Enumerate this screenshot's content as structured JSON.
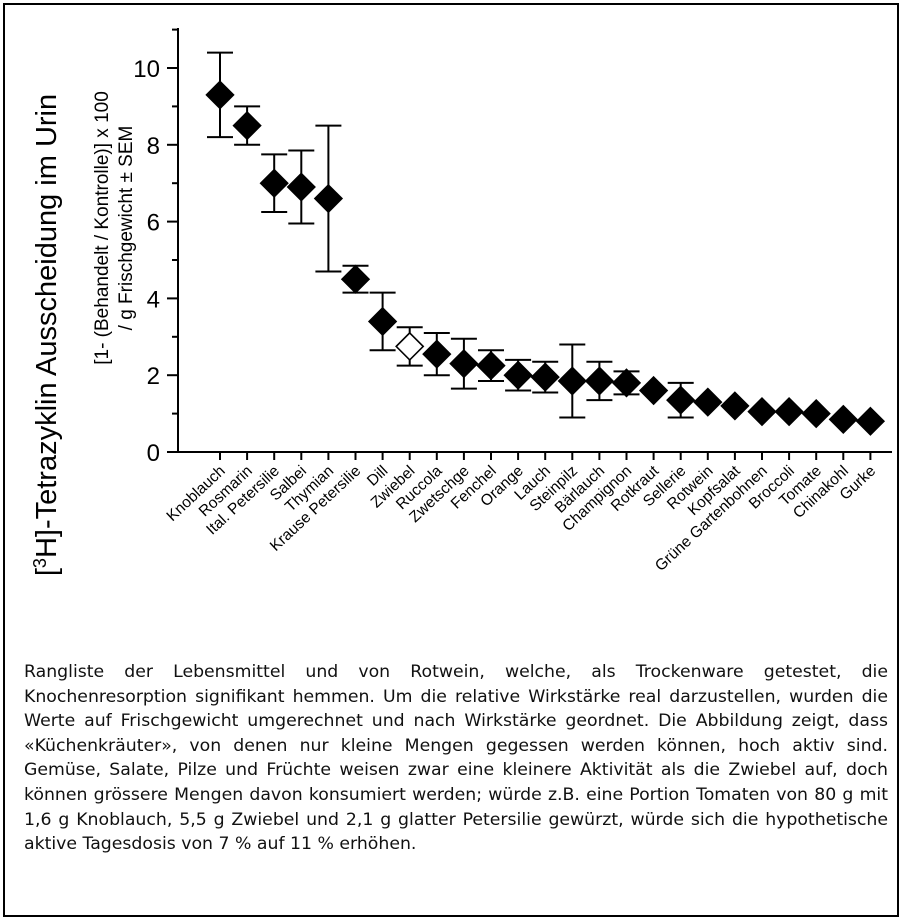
{
  "chart_data": {
    "type": "scatter",
    "ylabel_outer_prefix": "[",
    "ylabel_outer_sup": "3",
    "ylabel_outer_main": "H]-Tetrazyklin Ausscheidung im Urin",
    "ylabel_inner_line1": "[1- (Behandelt / Kontrolle)] x 100",
    "ylabel_inner_line2": "/ g Frischgewicht ± SEM",
    "ylim": [
      0,
      11
    ],
    "yticks": [
      "0",
      "2",
      "4",
      "6",
      "8",
      "10"
    ],
    "categories": [
      "Knoblauch",
      "Rosmarin",
      "Ital. Petersilie",
      "Salbei",
      "Thymian",
      "Krause Petersilie",
      "Dill",
      "Zwiebel",
      "Ruccola",
      "Zwetschge",
      "Fenchel",
      "Orange",
      "Lauch",
      "Steinpilz",
      "Bärlauch",
      "Champignon",
      "Rotkraut",
      "Sellerie",
      "Rotwein",
      "Kopfsalat",
      "Grüne Gartenbohnen",
      "Broccoli",
      "Tomate",
      "Chinakohl",
      "Gurke"
    ],
    "values": [
      9.3,
      8.5,
      7.0,
      6.9,
      6.6,
      4.5,
      3.4,
      2.75,
      2.55,
      2.3,
      2.25,
      2.0,
      1.95,
      1.85,
      1.85,
      1.8,
      1.6,
      1.35,
      1.3,
      1.2,
      1.05,
      1.05,
      1.0,
      0.85,
      0.8
    ],
    "sem": [
      1.1,
      0.5,
      0.75,
      0.95,
      1.9,
      0.35,
      0.75,
      0.5,
      0.55,
      0.65,
      0.4,
      0.4,
      0.4,
      0.95,
      0.5,
      0.3,
      0.0,
      0.45,
      0.0,
      0.0,
      0.0,
      0.0,
      0.0,
      0.0,
      0.0
    ],
    "open_marker": [
      "Zwiebel"
    ],
    "marker_color": "#000000"
  },
  "caption": "Rangliste der Lebensmittel und von Rotwein, welche, als Trockenware getestet, die Knochenresorption signifikant hemmen. Um die relative Wirkstärke real darzustellen, wurden die Werte auf Frischgewicht umgerechnet und nach Wirkstärke geordnet. Die Abbildung zeigt, dass «Küchenkräuter», von denen nur kleine Mengen gegessen werden können, hoch aktiv sind. Gemüse, Salate, Pilze und Früchte weisen zwar eine kleinere Aktivität als die Zwiebel auf, doch können grössere Mengen davon konsumiert werden; würde z.B. eine Portion Tomaten von 80 g mit 1,6 g Knoblauch, 5,5 g Zwiebel und 2,1 g glatter Petersilie gewürzt, würde sich die hypothetische aktive Tagesdosis von 7 % auf 11 % erhöhen."
}
